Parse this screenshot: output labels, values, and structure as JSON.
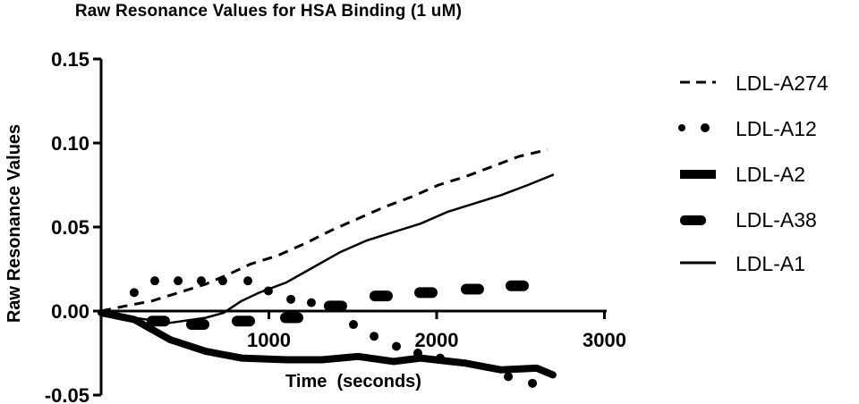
{
  "chart_data": {
    "type": "line",
    "title": "Raw Resonance Values for HSA Binding (1 uM)",
    "xlabel": "Time  (seconds)",
    "ylabel": "Raw Resonance Values",
    "xlim": [
      0,
      3000
    ],
    "ylim": [
      -0.05,
      0.15
    ],
    "x_ticks": [
      1000,
      2000,
      3000
    ],
    "x_tick_labels": [
      "1000",
      "2000",
      "3000"
    ],
    "y_ticks": [
      0.15,
      0.1,
      0.05,
      0.0,
      -0.05
    ],
    "y_tick_labels": [
      "0.15",
      "0.10",
      "0.05",
      "0.00",
      "-0.05"
    ],
    "grid": false,
    "legend_position": "right",
    "series": [
      {
        "name": "LDL-A274",
        "style": "dashed",
        "x": [
          0,
          144,
          304,
          464,
          624,
          784,
          891,
          1051,
          1211,
          1371,
          1531,
          1691,
          1851,
          2011,
          2171,
          2331,
          2491,
          2661
        ],
        "y": [
          0.0,
          0.003,
          0.006,
          0.011,
          0.016,
          0.023,
          0.028,
          0.033,
          0.04,
          0.048,
          0.055,
          0.062,
          0.068,
          0.075,
          0.08,
          0.086,
          0.092,
          0.096
        ]
      },
      {
        "name": "LDL-A12",
        "style": "dotted",
        "x": [
          197,
          320,
          459,
          597,
          725,
          875,
          997,
          1131,
          1253,
          1504,
          1627,
          1760,
          1888,
          2021,
          2427,
          2571
        ],
        "y": [
          0.011,
          0.018,
          0.018,
          0.018,
          0.018,
          0.018,
          0.012,
          0.007,
          0.005,
          -0.008,
          -0.015,
          -0.021,
          -0.025,
          -0.028,
          -0.039,
          -0.043
        ]
      },
      {
        "name": "LDL-A2",
        "style": "thick-solid",
        "x": [
          0,
          197,
          411,
          624,
          837,
          1104,
          1317,
          1531,
          1744,
          1904,
          2171,
          2384,
          2597,
          2693
        ],
        "y": [
          -0.001,
          -0.005,
          -0.017,
          -0.024,
          -0.028,
          -0.029,
          -0.029,
          -0.027,
          -0.03,
          -0.028,
          -0.031,
          -0.035,
          -0.034,
          -0.038
        ]
      },
      {
        "name": "LDL-A38",
        "style": "thick-dashed",
        "x": [
          341,
          576,
          848,
          1136,
          1397,
          1669,
          1936,
          2213,
          2480
        ],
        "y": [
          -0.006,
          -0.008,
          -0.006,
          -0.004,
          0.003,
          0.009,
          0.011,
          0.013,
          0.015
        ]
      },
      {
        "name": "LDL-A1",
        "style": "solid",
        "x": [
          0,
          197,
          411,
          624,
          731,
          837,
          944,
          1104,
          1264,
          1424,
          1584,
          1744,
          1904,
          2064,
          2224,
          2384,
          2544,
          2693
        ],
        "y": [
          0.0,
          -0.004,
          -0.007,
          -0.004,
          -0.001,
          0.006,
          0.011,
          0.017,
          0.026,
          0.035,
          0.042,
          0.047,
          0.052,
          0.059,
          0.064,
          0.069,
          0.075,
          0.081
        ]
      }
    ]
  },
  "legend": {
    "items": [
      {
        "label": "LDL-A274"
      },
      {
        "label": "LDL-A12"
      },
      {
        "label": "LDL-A2"
      },
      {
        "label": "LDL-A38"
      },
      {
        "label": "LDL-A1"
      }
    ]
  },
  "colors": {
    "ink": "#000000",
    "background": "#ffffff"
  }
}
